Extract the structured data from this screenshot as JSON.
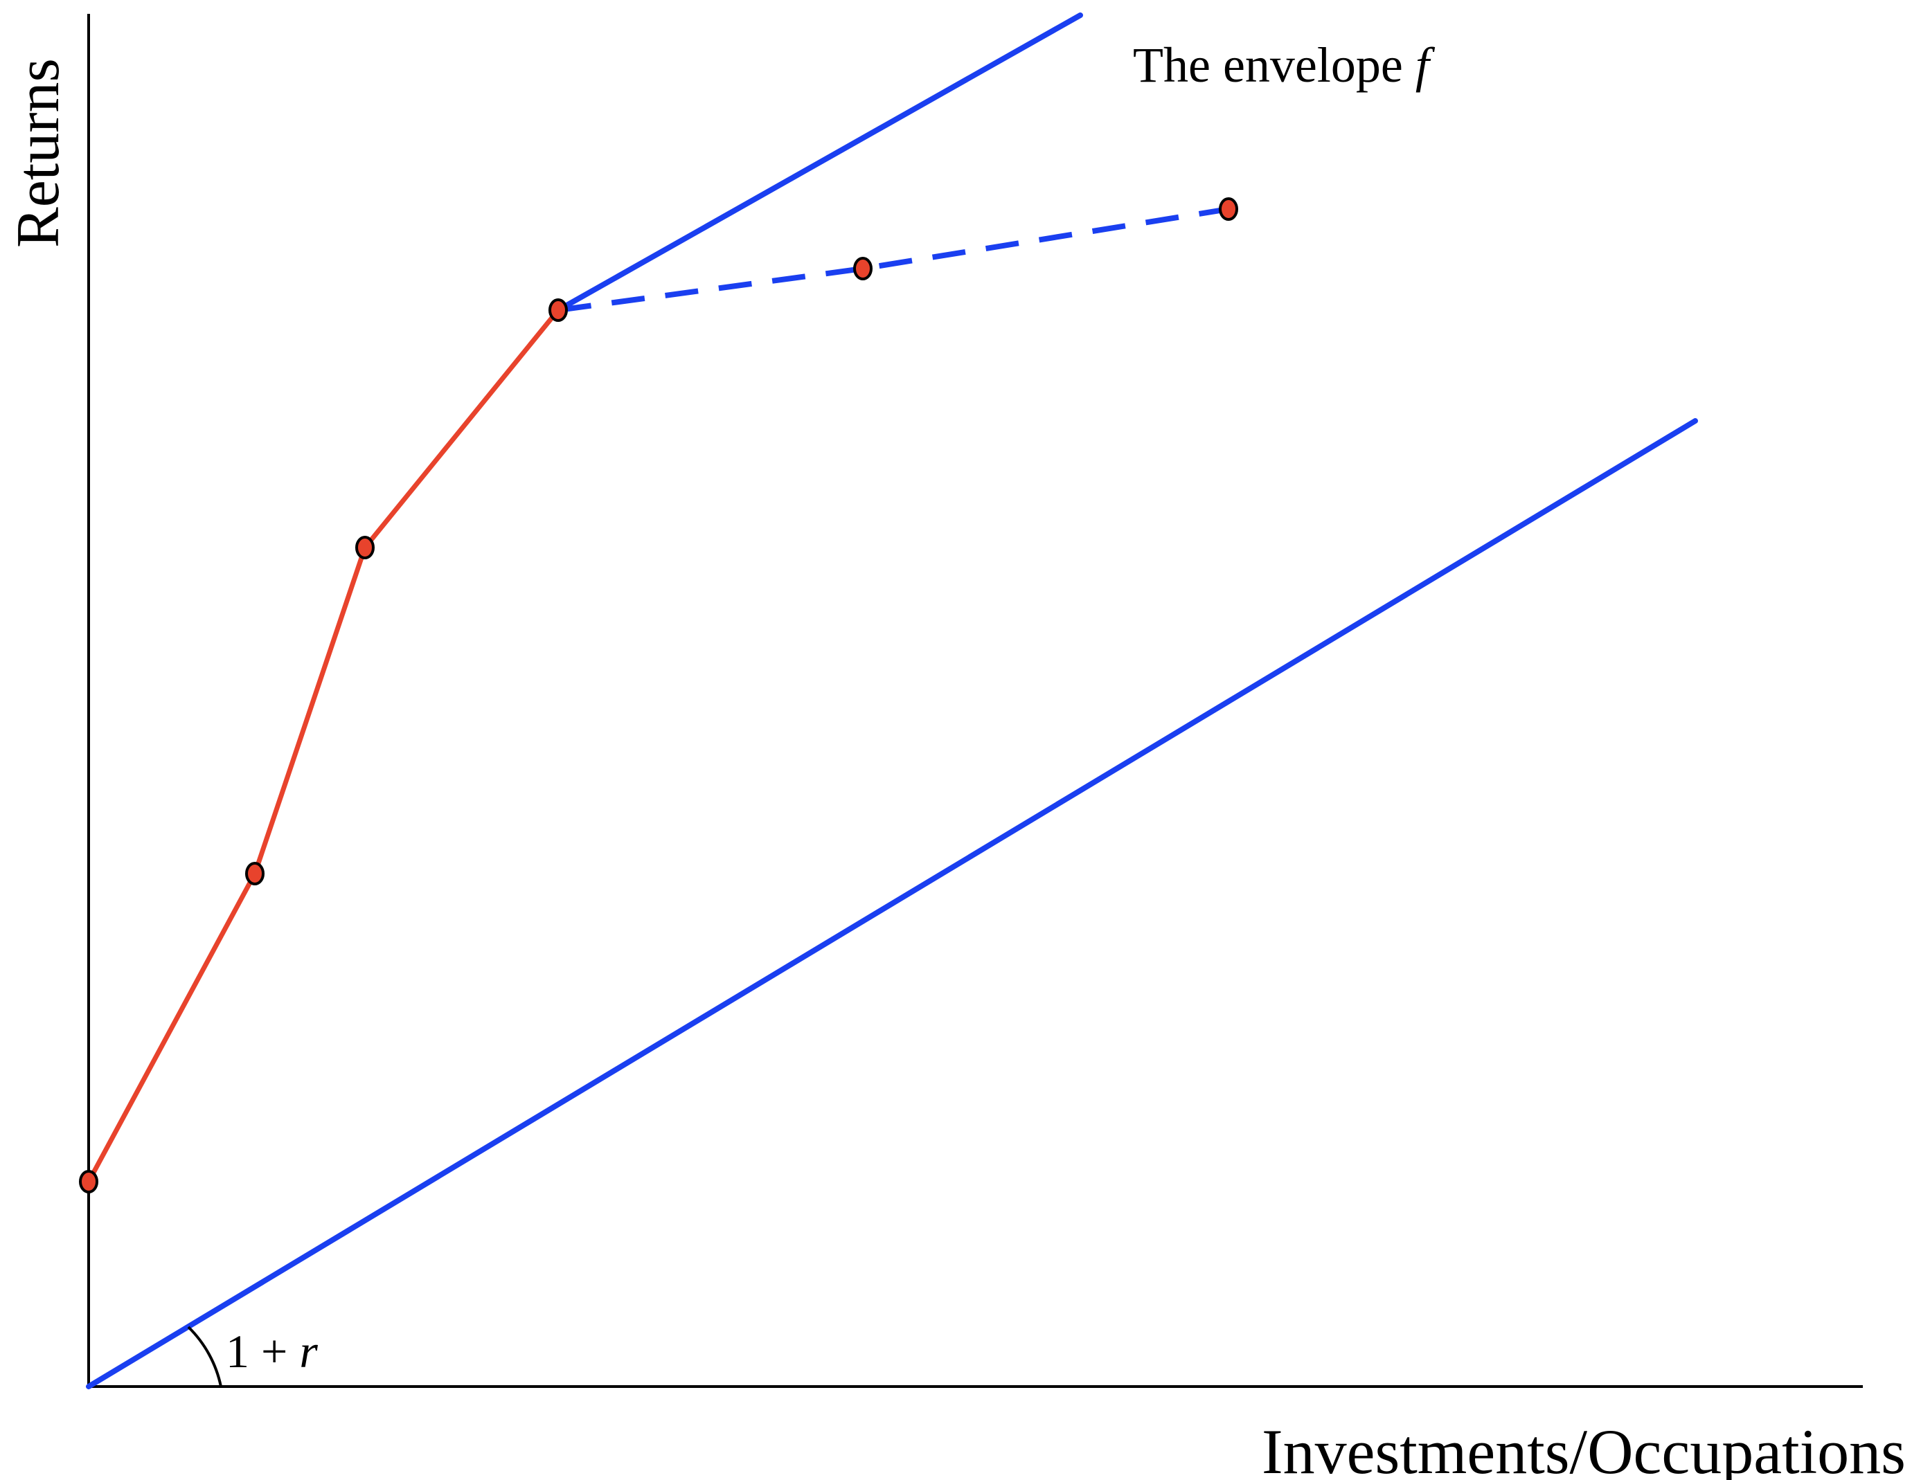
{
  "axes": {
    "x_label": "Investments/Occupations",
    "y_label": "Returns"
  },
  "envelope_label": {
    "text": "The envelope ",
    "symbol": "f"
  },
  "angle_label": {
    "text": "1 + ",
    "symbol": "r"
  },
  "colors": {
    "blue_line": "#1a3ff0",
    "red_line": "#e8432c",
    "axis": "#000000"
  }
}
